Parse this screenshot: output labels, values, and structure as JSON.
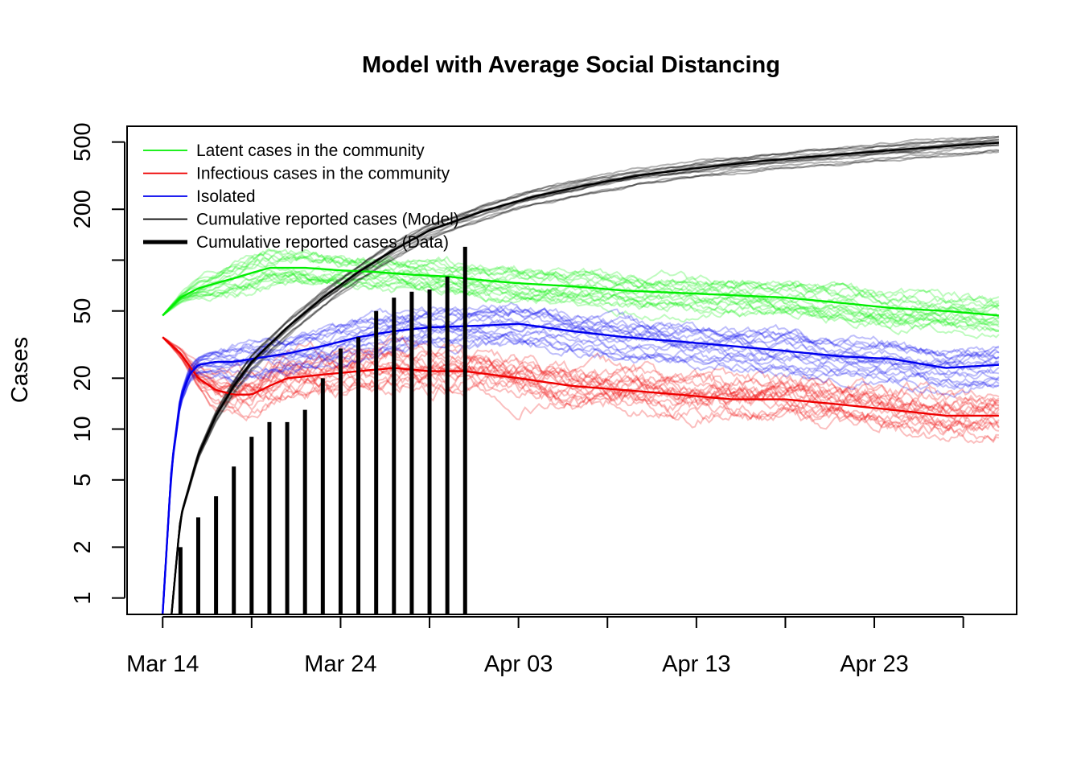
{
  "chart_data": {
    "type": "line",
    "title": "Model with Average Social Distancing",
    "xlabel": "",
    "ylabel": "Cases",
    "y_scale": "log",
    "ylim": [
      0.8,
      620
    ],
    "xlim": [
      "2020-03-12",
      "2020-05-01"
    ],
    "x_ticks": [
      "2020-03-14",
      "2020-03-19",
      "2020-03-24",
      "2020-03-29",
      "2020-04-03",
      "2020-04-08",
      "2020-04-13",
      "2020-04-18",
      "2020-04-23",
      "2020-04-28"
    ],
    "x_tick_labels": [
      "Mar 14",
      "",
      "Mar 24",
      "",
      "Apr 03",
      "",
      "Apr 13",
      "",
      "Apr 23",
      ""
    ],
    "y_ticks": [
      1,
      2,
      5,
      10,
      20,
      50,
      100,
      200,
      500
    ],
    "y_tick_labels": [
      "1",
      "2",
      "5",
      "10",
      "20",
      "50",
      "",
      "200",
      "500"
    ],
    "grid": false,
    "legend_position": "top-left",
    "legend": [
      {
        "label": "Latent cases in the community",
        "color": "#00ee00",
        "style": "thin"
      },
      {
        "label": "Infectious cases in the community",
        "color": "#ee0000",
        "style": "thin"
      },
      {
        "label": "Isolated",
        "color": "#0000ee",
        "style": "thin"
      },
      {
        "label": "Cumulative reported cases (Model)",
        "color": "#000000",
        "style": "thin"
      },
      {
        "label": "Cumulative reported cases (Data)",
        "color": "#000000",
        "style": "thick"
      }
    ],
    "series": [
      {
        "name": "Latent cases in the community",
        "color": "#00ee00",
        "x": [
          "2020-03-14",
          "2020-03-15",
          "2020-03-16",
          "2020-03-17",
          "2020-03-18",
          "2020-03-19",
          "2020-03-20",
          "2020-03-22",
          "2020-03-24",
          "2020-03-26",
          "2020-03-28",
          "2020-03-30",
          "2020-04-01",
          "2020-04-03",
          "2020-04-06",
          "2020-04-09",
          "2020-04-12",
          "2020-04-15",
          "2020-04-18",
          "2020-04-21",
          "2020-04-24",
          "2020-04-27",
          "2020-04-30"
        ],
        "y": [
          47,
          60,
          68,
          73,
          78,
          84,
          90,
          90,
          87,
          85,
          82,
          80,
          76,
          73,
          70,
          66,
          64,
          62,
          60,
          56,
          52,
          50,
          47
        ]
      },
      {
        "name": "Infectious cases in the community",
        "color": "#ee0000",
        "x": [
          "2020-03-14",
          "2020-03-15",
          "2020-03-16",
          "2020-03-17",
          "2020-03-18",
          "2020-03-19",
          "2020-03-20",
          "2020-03-21",
          "2020-03-23",
          "2020-03-25",
          "2020-03-27",
          "2020-03-29",
          "2020-03-31",
          "2020-04-03",
          "2020-04-06",
          "2020-04-09",
          "2020-04-12",
          "2020-04-15",
          "2020-04-18",
          "2020-04-21",
          "2020-04-24",
          "2020-04-27",
          "2020-04-30"
        ],
        "y": [
          35,
          28,
          20,
          17,
          16,
          16,
          18,
          20,
          21,
          22,
          23,
          22,
          22,
          20,
          18,
          17,
          16,
          15,
          15,
          14,
          13,
          12,
          12
        ]
      },
      {
        "name": "Isolated",
        "color": "#0000ee",
        "x": [
          "2020-03-14",
          "2020-03-14T12:00",
          "2020-03-15",
          "2020-03-15T12:00",
          "2020-03-16",
          "2020-03-17",
          "2020-03-18",
          "2020-03-19",
          "2020-03-21",
          "2020-03-23",
          "2020-03-25",
          "2020-03-27",
          "2020-03-29",
          "2020-04-01",
          "2020-04-03",
          "2020-04-06",
          "2020-04-09",
          "2020-04-12",
          "2020-04-15",
          "2020-04-18",
          "2020-04-21",
          "2020-04-24",
          "2020-04-27",
          "2020-04-30"
        ],
        "y": [
          0.8,
          6,
          15,
          21,
          24,
          25,
          25,
          26,
          28,
          31,
          35,
          38,
          40,
          41,
          42,
          38,
          35,
          33,
          31,
          29,
          27,
          26,
          23,
          24
        ]
      },
      {
        "name": "Cumulative reported cases (Model)",
        "color": "#000000",
        "x": [
          "2020-03-14T12:00",
          "2020-03-15",
          "2020-03-16",
          "2020-03-17",
          "2020-03-18",
          "2020-03-19",
          "2020-03-21",
          "2020-03-23",
          "2020-03-25",
          "2020-03-27",
          "2020-03-29",
          "2020-04-01",
          "2020-04-04",
          "2020-04-07",
          "2020-04-10",
          "2020-04-13",
          "2020-04-16",
          "2020-04-19",
          "2020-04-22",
          "2020-04-25",
          "2020-04-28",
          "2020-04-30"
        ],
        "y": [
          0.8,
          3,
          7,
          12,
          18,
          25,
          40,
          60,
          85,
          115,
          150,
          195,
          240,
          280,
          320,
          350,
          380,
          405,
          430,
          455,
          480,
          495
        ]
      }
    ],
    "bars": {
      "name": "Cumulative reported cases (Data)",
      "color": "#000000",
      "x": [
        "2020-03-15",
        "2020-03-16",
        "2020-03-17",
        "2020-03-18",
        "2020-03-19",
        "2020-03-20",
        "2020-03-21",
        "2020-03-22",
        "2020-03-23",
        "2020-03-24",
        "2020-03-25",
        "2020-03-26",
        "2020-03-27",
        "2020-03-28",
        "2020-03-29",
        "2020-03-30",
        "2020-03-31"
      ],
      "values": [
        2,
        3,
        4,
        6,
        9,
        11,
        11,
        13,
        20,
        30,
        35,
        50,
        60,
        65,
        67,
        80,
        120
      ]
    }
  }
}
